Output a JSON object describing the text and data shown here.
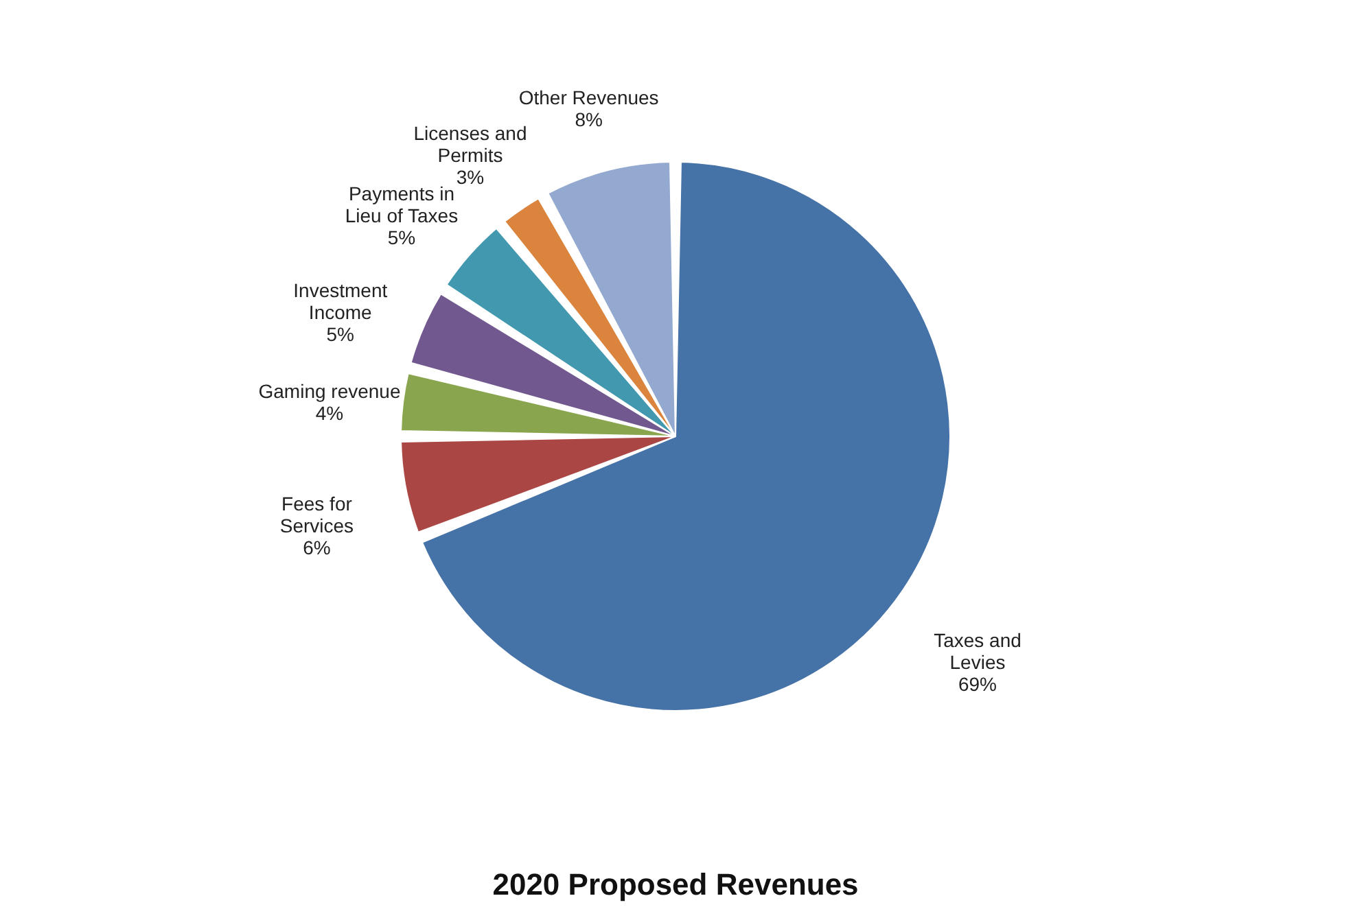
{
  "chart_data": {
    "type": "pie",
    "title": "2020 Proposed Revenues",
    "categories": [
      "Taxes and Levies",
      "Fees for Services",
      "Gaming revenue",
      "Investment Income",
      "Payments in Lieu of Taxes",
      "Licenses and Permits",
      "Other Revenues"
    ],
    "values": [
      69,
      6,
      4,
      5,
      5,
      3,
      8
    ],
    "value_labels": [
      "69%",
      "6%",
      "4%",
      "5%",
      "5%",
      "3%",
      "8%"
    ],
    "colors": [
      "#4572a7",
      "#aa4643",
      "#89a54e",
      "#71588f",
      "#4198af",
      "#db843d",
      "#93a9cf"
    ],
    "legend": false
  }
}
